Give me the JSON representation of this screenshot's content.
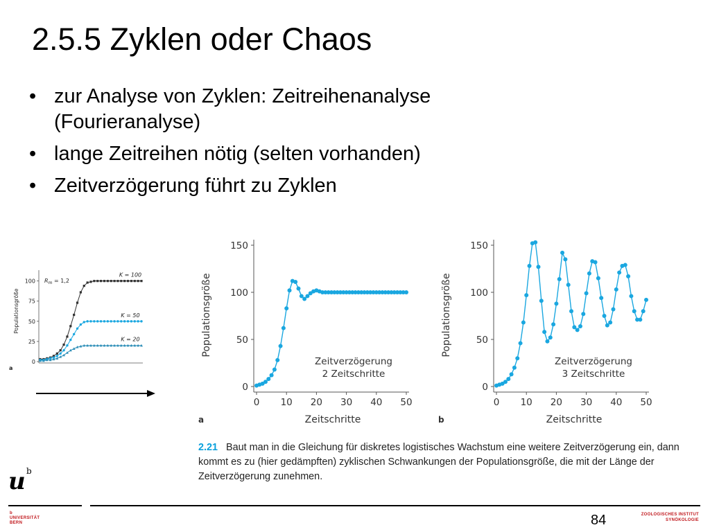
{
  "title": "2.5.5  Zyklen oder Chaos",
  "bullets": [
    {
      "symbol": "•",
      "line1": "zur Analyse von Zyklen: Zeitreihenanalyse",
      "line2": "(Fourieranalyse)"
    },
    {
      "symbol": "•",
      "line1": "lange Zeitreihen nötig (selten vorhanden)",
      "line2": ""
    },
    {
      "symbol": "•",
      "line1": "Zeitverzögerung führt zu Zyklen",
      "line2": ""
    }
  ],
  "small_chart": {
    "panel_label": "a",
    "ylabel": "Populationsgröße",
    "rm_label": "R",
    "rm_sub": "m",
    "rm_value": " = 1,2",
    "y_ticks": [
      "100",
      "75",
      "50",
      "25",
      "0"
    ],
    "k_labels": [
      "K = 100",
      "K = 50",
      "K = 20"
    ]
  },
  "caption": {
    "number": "2.21",
    "text": "Baut man in die Gleichung für diskretes logistisches Wachstum eine weitere Zeitverzögerung ein, dann kommt es zu (hier gedämpften) zyklischen Schwankungen der Populationsgröße, die mit der Länge der Zeitverzögerung zunehmen."
  },
  "footer": {
    "page": "84",
    "logo_letter": "u",
    "logo_sup": "b",
    "university_small": "b",
    "university": "UNIVERSITÄT",
    "city": "BERN",
    "institute_line1": "ZOOLOGISCHES INSTITUT",
    "institute_line2": "SYNÖKOLOGIE"
  },
  "colors": {
    "series": "#1aa7e0",
    "dark": "#333333",
    "accent": "#c0161b"
  },
  "chart_data": [
    {
      "type": "line",
      "panel": "a",
      "xlabel": "Zeitschritte",
      "ylabel": "Populationsgröße",
      "xlim": [
        0,
        50
      ],
      "ylim": [
        0,
        150
      ],
      "x_ticks": [
        0,
        10,
        20,
        30,
        40,
        50
      ],
      "y_ticks": [
        0,
        50,
        100,
        150
      ],
      "annotation_line1": "Zeitverzögerung",
      "annotation_line2": "2 Zeitschritte",
      "x": [
        0,
        1,
        2,
        3,
        4,
        5,
        6,
        7,
        8,
        9,
        10,
        11,
        12,
        13,
        14,
        15,
        16,
        17,
        18,
        19,
        20,
        21,
        22,
        23,
        24,
        25,
        26,
        27,
        28,
        29,
        30,
        31,
        32,
        33,
        34,
        35,
        36,
        37,
        38,
        39,
        40,
        41,
        42,
        43,
        44,
        45,
        46,
        47,
        48,
        49,
        50
      ],
      "values": [
        1,
        2,
        3,
        5,
        8,
        12,
        18,
        28,
        43,
        62,
        83,
        102,
        112,
        111,
        104,
        96,
        93,
        96,
        99,
        101,
        102,
        101,
        100,
        100,
        100,
        100,
        100,
        100,
        100,
        100,
        100,
        100,
        100,
        100,
        100,
        100,
        100,
        100,
        100,
        100,
        100,
        100,
        100,
        100,
        100,
        100,
        100,
        100,
        100,
        100,
        100
      ]
    },
    {
      "type": "line",
      "panel": "b",
      "xlabel": "Zeitschritte",
      "ylabel": "Populationsgröße",
      "xlim": [
        0,
        50
      ],
      "ylim": [
        0,
        150
      ],
      "x_ticks": [
        0,
        10,
        20,
        30,
        40,
        50
      ],
      "y_ticks": [
        0,
        50,
        100,
        150
      ],
      "annotation_line1": "Zeitverzögerung",
      "annotation_line2": "3 Zeitschritte",
      "x": [
        0,
        1,
        2,
        3,
        4,
        5,
        6,
        7,
        8,
        9,
        10,
        11,
        12,
        13,
        14,
        15,
        16,
        17,
        18,
        19,
        20,
        21,
        22,
        23,
        24,
        25,
        26,
        27,
        28,
        29,
        30,
        31,
        32,
        33,
        34,
        35,
        36,
        37,
        38,
        39,
        40,
        41,
        42,
        43,
        44,
        45,
        46,
        47,
        48,
        49,
        50
      ],
      "values": [
        1,
        2,
        3,
        5,
        8,
        13,
        20,
        30,
        46,
        68,
        97,
        128,
        152,
        153,
        127,
        91,
        58,
        48,
        52,
        66,
        88,
        114,
        142,
        135,
        108,
        80,
        63,
        60,
        64,
        77,
        99,
        120,
        133,
        132,
        115,
        94,
        75,
        65,
        68,
        82,
        103,
        121,
        128,
        129,
        117,
        96,
        80,
        71,
        71,
        80,
        92
      ]
    },
    {
      "type": "line",
      "panel": "small",
      "ylim": [
        0,
        110
      ],
      "y_ticks": [
        0,
        25,
        50,
        75,
        100
      ],
      "x": [
        0,
        1,
        2,
        3,
        4,
        5,
        6,
        7,
        8,
        9,
        10,
        11,
        12,
        13,
        14,
        15,
        16,
        17,
        18,
        19,
        20,
        21,
        22,
        23,
        24,
        25,
        26,
        27,
        28,
        29,
        30
      ],
      "series": [
        {
          "name": "K = 100",
          "values": [
            3,
            3,
            4,
            5,
            7,
            10,
            14,
            21,
            31,
            44,
            58,
            73,
            86,
            94,
            98,
            99,
            100,
            100,
            100,
            100,
            100,
            100,
            100,
            100,
            100,
            100,
            100,
            100,
            100,
            100,
            100
          ]
        },
        {
          "name": "K = 50",
          "values": [
            2,
            2,
            3,
            4,
            5,
            7,
            10,
            14,
            20,
            27,
            34,
            41,
            46,
            49,
            50,
            50,
            50,
            50,
            50,
            50,
            50,
            50,
            50,
            50,
            50,
            50,
            50,
            50,
            50,
            50,
            50
          ]
        },
        {
          "name": "K = 20",
          "values": [
            1,
            1,
            2,
            2,
            3,
            4,
            6,
            8,
            11,
            14,
            16,
            18,
            19,
            20,
            20,
            20,
            20,
            20,
            20,
            20,
            20,
            20,
            20,
            20,
            20,
            20,
            20,
            20,
            20,
            20,
            20
          ]
        }
      ]
    }
  ]
}
